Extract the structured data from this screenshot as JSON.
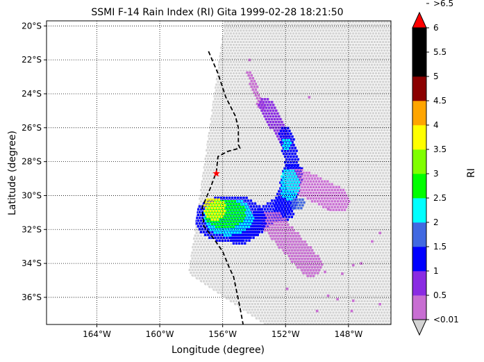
{
  "chart_data": {
    "type": "heatmap",
    "title": "SSMI F-14 Rain Index (RI) Gita 1999-02-28 18:21:50",
    "xlabel": "Longitude (degree)",
    "ylabel": "Latitude (degree)",
    "xlim": [
      -167.2,
      -145.3
    ],
    "ylim": [
      -37.6,
      -19.7
    ],
    "x_ticks": [
      {
        "value": -164,
        "label": "164°W"
      },
      {
        "value": -160,
        "label": "160°W"
      },
      {
        "value": -156,
        "label": "156°W"
      },
      {
        "value": -152,
        "label": "152°W"
      },
      {
        "value": -148,
        "label": "148°W"
      }
    ],
    "y_ticks": [
      {
        "value": -20,
        "label": "20°S"
      },
      {
        "value": -22,
        "label": "22°S"
      },
      {
        "value": -24,
        "label": "24°S"
      },
      {
        "value": -26,
        "label": "26°S"
      },
      {
        "value": -28,
        "label": "28°S"
      },
      {
        "value": -30,
        "label": "30°S"
      },
      {
        "value": -32,
        "label": "32°S"
      },
      {
        "value": -34,
        "label": "34°S"
      },
      {
        "value": -36,
        "label": "36°S"
      }
    ],
    "grid": true,
    "grid_style": "dotted",
    "swath": {
      "polygon": [
        [
          -155.9,
          -19.7
        ],
        [
          -145.3,
          -19.7
        ],
        [
          -145.3,
          -37.6
        ],
        [
          -153.4,
          -37.6
        ],
        [
          -158.2,
          -34.6
        ]
      ],
      "no_rain_color": "#d3d3d3"
    },
    "track": {
      "color": "#000000",
      "style": "dashed",
      "points": [
        [
          -156.9,
          -21.5
        ],
        [
          -156.3,
          -22.8
        ],
        [
          -155.8,
          -24.2
        ],
        [
          -155.2,
          -25.3
        ],
        [
          -155.0,
          -26.0
        ],
        [
          -155.0,
          -27.0
        ],
        [
          -154.9,
          -27.2
        ],
        [
          -155.7,
          -27.4
        ],
        [
          -156.3,
          -27.7
        ],
        [
          -156.4,
          -28.6
        ],
        [
          -156.8,
          -29.6
        ],
        [
          -157.3,
          -30.7
        ],
        [
          -157.2,
          -31.8
        ],
        [
          -156.6,
          -32.5
        ],
        [
          -156.0,
          -33.3
        ],
        [
          -155.6,
          -34.2
        ],
        [
          -155.3,
          -34.8
        ],
        [
          -155.1,
          -35.7
        ],
        [
          -154.9,
          -36.6
        ],
        [
          -154.7,
          -37.6
        ]
      ]
    },
    "storm_center": {
      "lon": -156.4,
      "lat": -28.7,
      "color": "#ff0000",
      "marker": "star"
    },
    "rain_features": [
      {
        "shape": "segment",
        "from": [
          -154.4,
          -22.7
        ],
        "to": [
          -153.6,
          -24.7
        ],
        "width_deg": 0.4,
        "ri": 0.3
      },
      {
        "shape": "segment",
        "from": [
          -153.4,
          -24.5
        ],
        "to": [
          -152.0,
          -26.8
        ],
        "width_deg": 0.9,
        "ri": 0.8
      },
      {
        "shape": "segment",
        "from": [
          -152.1,
          -26.2
        ],
        "to": [
          -151.5,
          -28.6
        ],
        "width_deg": 0.9,
        "ri": 1.2
      },
      {
        "shape": "segment",
        "from": [
          -151.6,
          -28.6
        ],
        "to": [
          -152.2,
          -30.9
        ],
        "width_deg": 1.3,
        "ri": 1.2
      },
      {
        "shape": "segment",
        "from": [
          -152.3,
          -30.5
        ],
        "to": [
          -155.0,
          -32.3
        ],
        "width_deg": 1.3,
        "ri": 1.2
      },
      {
        "shape": "segment",
        "from": [
          -151.4,
          -29.0
        ],
        "to": [
          -148.8,
          -30.2
        ],
        "width_deg": 1.6,
        "ri": 0.4
      },
      {
        "shape": "segment",
        "from": [
          -152.9,
          -31.5
        ],
        "to": [
          -150.5,
          -34.0
        ],
        "width_deg": 1.5,
        "ri": 0.3
      },
      {
        "shape": "ellipse",
        "center": [
          -155.6,
          -31.3
        ],
        "radii": [
          2.3,
          1.4
        ],
        "ri": 1.0
      },
      {
        "shape": "ellipse",
        "center": [
          -155.7,
          -31.2
        ],
        "radii": [
          1.6,
          1.1
        ],
        "ri": 2.2
      },
      {
        "shape": "ellipse",
        "center": [
          -155.9,
          -31.0
        ],
        "radii": [
          1.3,
          0.9
        ],
        "ri": 2.7
      },
      {
        "shape": "ellipse",
        "center": [
          -156.6,
          -30.7
        ],
        "radii": [
          0.7,
          0.7
        ],
        "ri": 3.7
      },
      {
        "shape": "ellipse",
        "center": [
          -151.8,
          -29.3
        ],
        "radii": [
          0.6,
          1.0
        ],
        "ri": 2.1
      },
      {
        "shape": "ellipse",
        "center": [
          -152.0,
          -26.9
        ],
        "radii": [
          0.3,
          0.4
        ],
        "ri": 2.1
      },
      {
        "shape": "ellipse",
        "center": [
          -151.3,
          -30.4
        ],
        "radii": [
          0.5,
          0.4
        ],
        "ri": 1.7
      }
    ],
    "scattered_light_rain": [
      {
        "lon": -147.2,
        "lat": -34.0,
        "ri": 0.3
      },
      {
        "lon": -147.7,
        "lat": -34.1,
        "ri": 0.3
      },
      {
        "lon": -148.4,
        "lat": -34.6,
        "ri": 0.3
      },
      {
        "lon": -148.7,
        "lat": -36.1,
        "ri": 0.3
      },
      {
        "lon": -149.3,
        "lat": -35.9,
        "ri": 0.3
      },
      {
        "lon": -147.7,
        "lat": -36.2,
        "ri": 0.3
      },
      {
        "lon": -147.8,
        "lat": -36.8,
        "ri": 0.3
      },
      {
        "lon": -150.0,
        "lat": -36.8,
        "ri": 0.3
      },
      {
        "lon": -151.9,
        "lat": -35.5,
        "ri": 0.3
      },
      {
        "lon": -146.5,
        "lat": -32.7,
        "ri": 0.3
      },
      {
        "lon": -146.0,
        "lat": -32.2,
        "ri": 0.3
      },
      {
        "lon": -149.3,
        "lat": -30.8,
        "ri": 0.3
      },
      {
        "lon": -150.5,
        "lat": -24.2,
        "ri": 0.3
      },
      {
        "lon": -154.3,
        "lat": -22.0,
        "ri": 0.3
      },
      {
        "lon": -146.0,
        "lat": -36.4,
        "ri": 0.3
      },
      {
        "lon": -149.5,
        "lat": -34.5,
        "ri": 0.3
      }
    ],
    "colorbar": {
      "label": "RI",
      "under_label": "<0.01",
      "under_color": "#d3d3d3",
      "over_label": ">6.5",
      "over_color": "#ff0000",
      "bins": [
        {
          "from": 0.01,
          "to": 0.5,
          "color": "#c86ed2"
        },
        {
          "from": 0.5,
          "to": 1,
          "color": "#8a2be2"
        },
        {
          "from": 1,
          "to": 1.5,
          "color": "#0000ff"
        },
        {
          "from": 1.5,
          "to": 2,
          "color": "#4169e1"
        },
        {
          "from": 2,
          "to": 2.5,
          "color": "#00ffff"
        },
        {
          "from": 2.5,
          "to": 3,
          "color": "#00ff00"
        },
        {
          "from": 3,
          "to": 3.5,
          "color": "#7fff00"
        },
        {
          "from": 3.5,
          "to": 4,
          "color": "#ffff00"
        },
        {
          "from": 4,
          "to": 4.5,
          "color": "#ffa500"
        },
        {
          "from": 4.5,
          "to": 5,
          "color": "#8b0000"
        },
        {
          "from": 5,
          "to": 5.5,
          "color": "#000000"
        },
        {
          "from": 5.5,
          "to": 6.5,
          "color": "#000000"
        }
      ],
      "tick_labels": [
        "0.5",
        "1",
        "1.5",
        "2",
        "2.5",
        "3",
        "3.5",
        "4",
        "4.5",
        "5",
        "5.5",
        "6"
      ]
    }
  }
}
